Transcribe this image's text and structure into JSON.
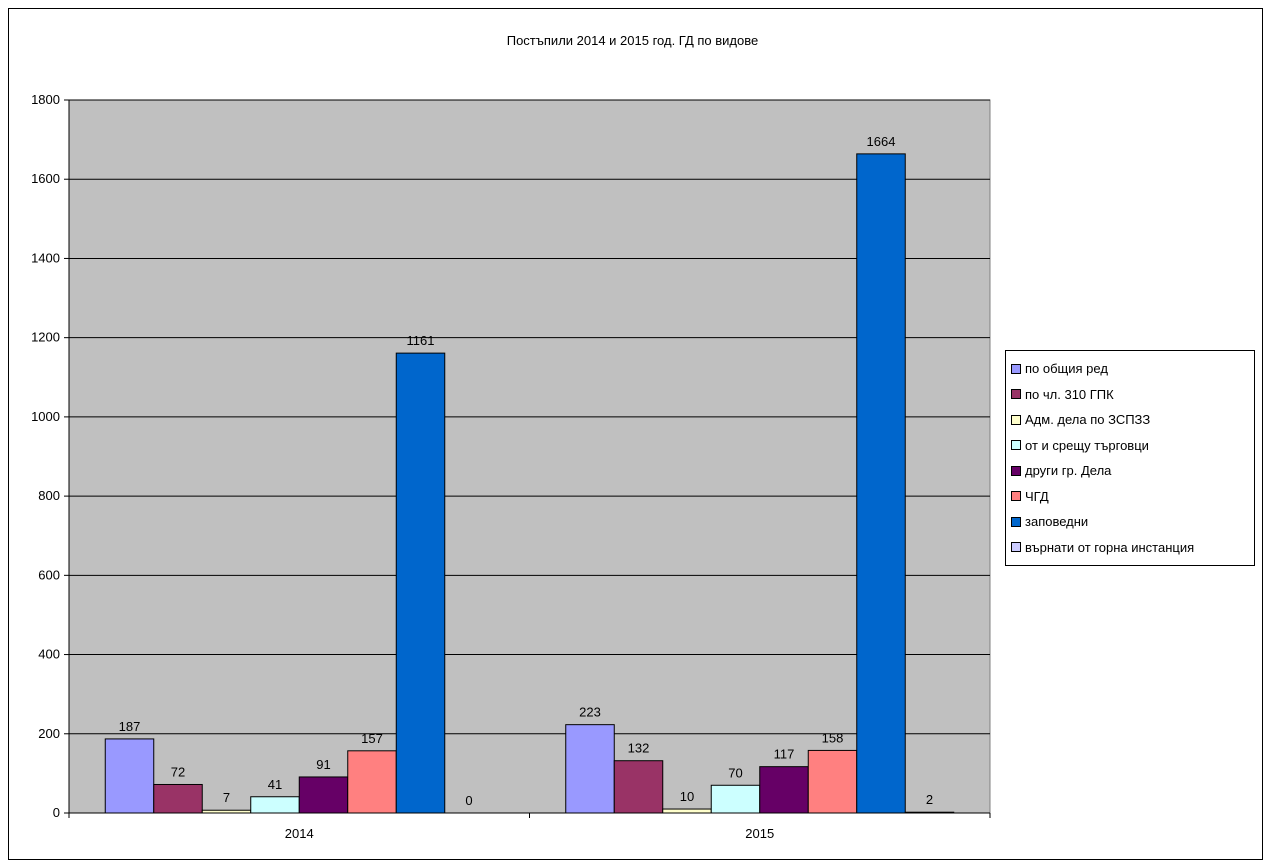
{
  "chart_data": {
    "type": "bar",
    "title": "Постъпили 2014 и 2015 год. ГД по видове",
    "xlabel": "",
    "ylabel": "",
    "categories": [
      "2014",
      "2015"
    ],
    "ylim": [
      0,
      1800
    ],
    "yticks": [
      0,
      200,
      400,
      600,
      800,
      1000,
      1200,
      1400,
      1600,
      1800
    ],
    "grid": true,
    "legend_position": "right",
    "plot_background": "#c0c0c0",
    "series": [
      {
        "name": "по общия ред",
        "values": [
          187,
          223
        ],
        "color": "#9999ff"
      },
      {
        "name": "по чл. 310 ГПК",
        "values": [
          72,
          132
        ],
        "color": "#993366"
      },
      {
        "name": "Адм. дела по ЗСПЗЗ",
        "values": [
          7,
          10
        ],
        "color": "#ffffcc"
      },
      {
        "name": "от и срещу търговци",
        "values": [
          41,
          70
        ],
        "color": "#ccffff"
      },
      {
        "name": "други гр. Дела",
        "values": [
          91,
          117
        ],
        "color": "#660066"
      },
      {
        "name": "ЧГД",
        "values": [
          157,
          158
        ],
        "color": "#ff8080"
      },
      {
        "name": "заповедни",
        "values": [
          1161,
          1664
        ],
        "color": "#0066cc"
      },
      {
        "name": "върнати от горна инстанция",
        "values": [
          0,
          2
        ],
        "color": "#ccccff"
      }
    ]
  }
}
